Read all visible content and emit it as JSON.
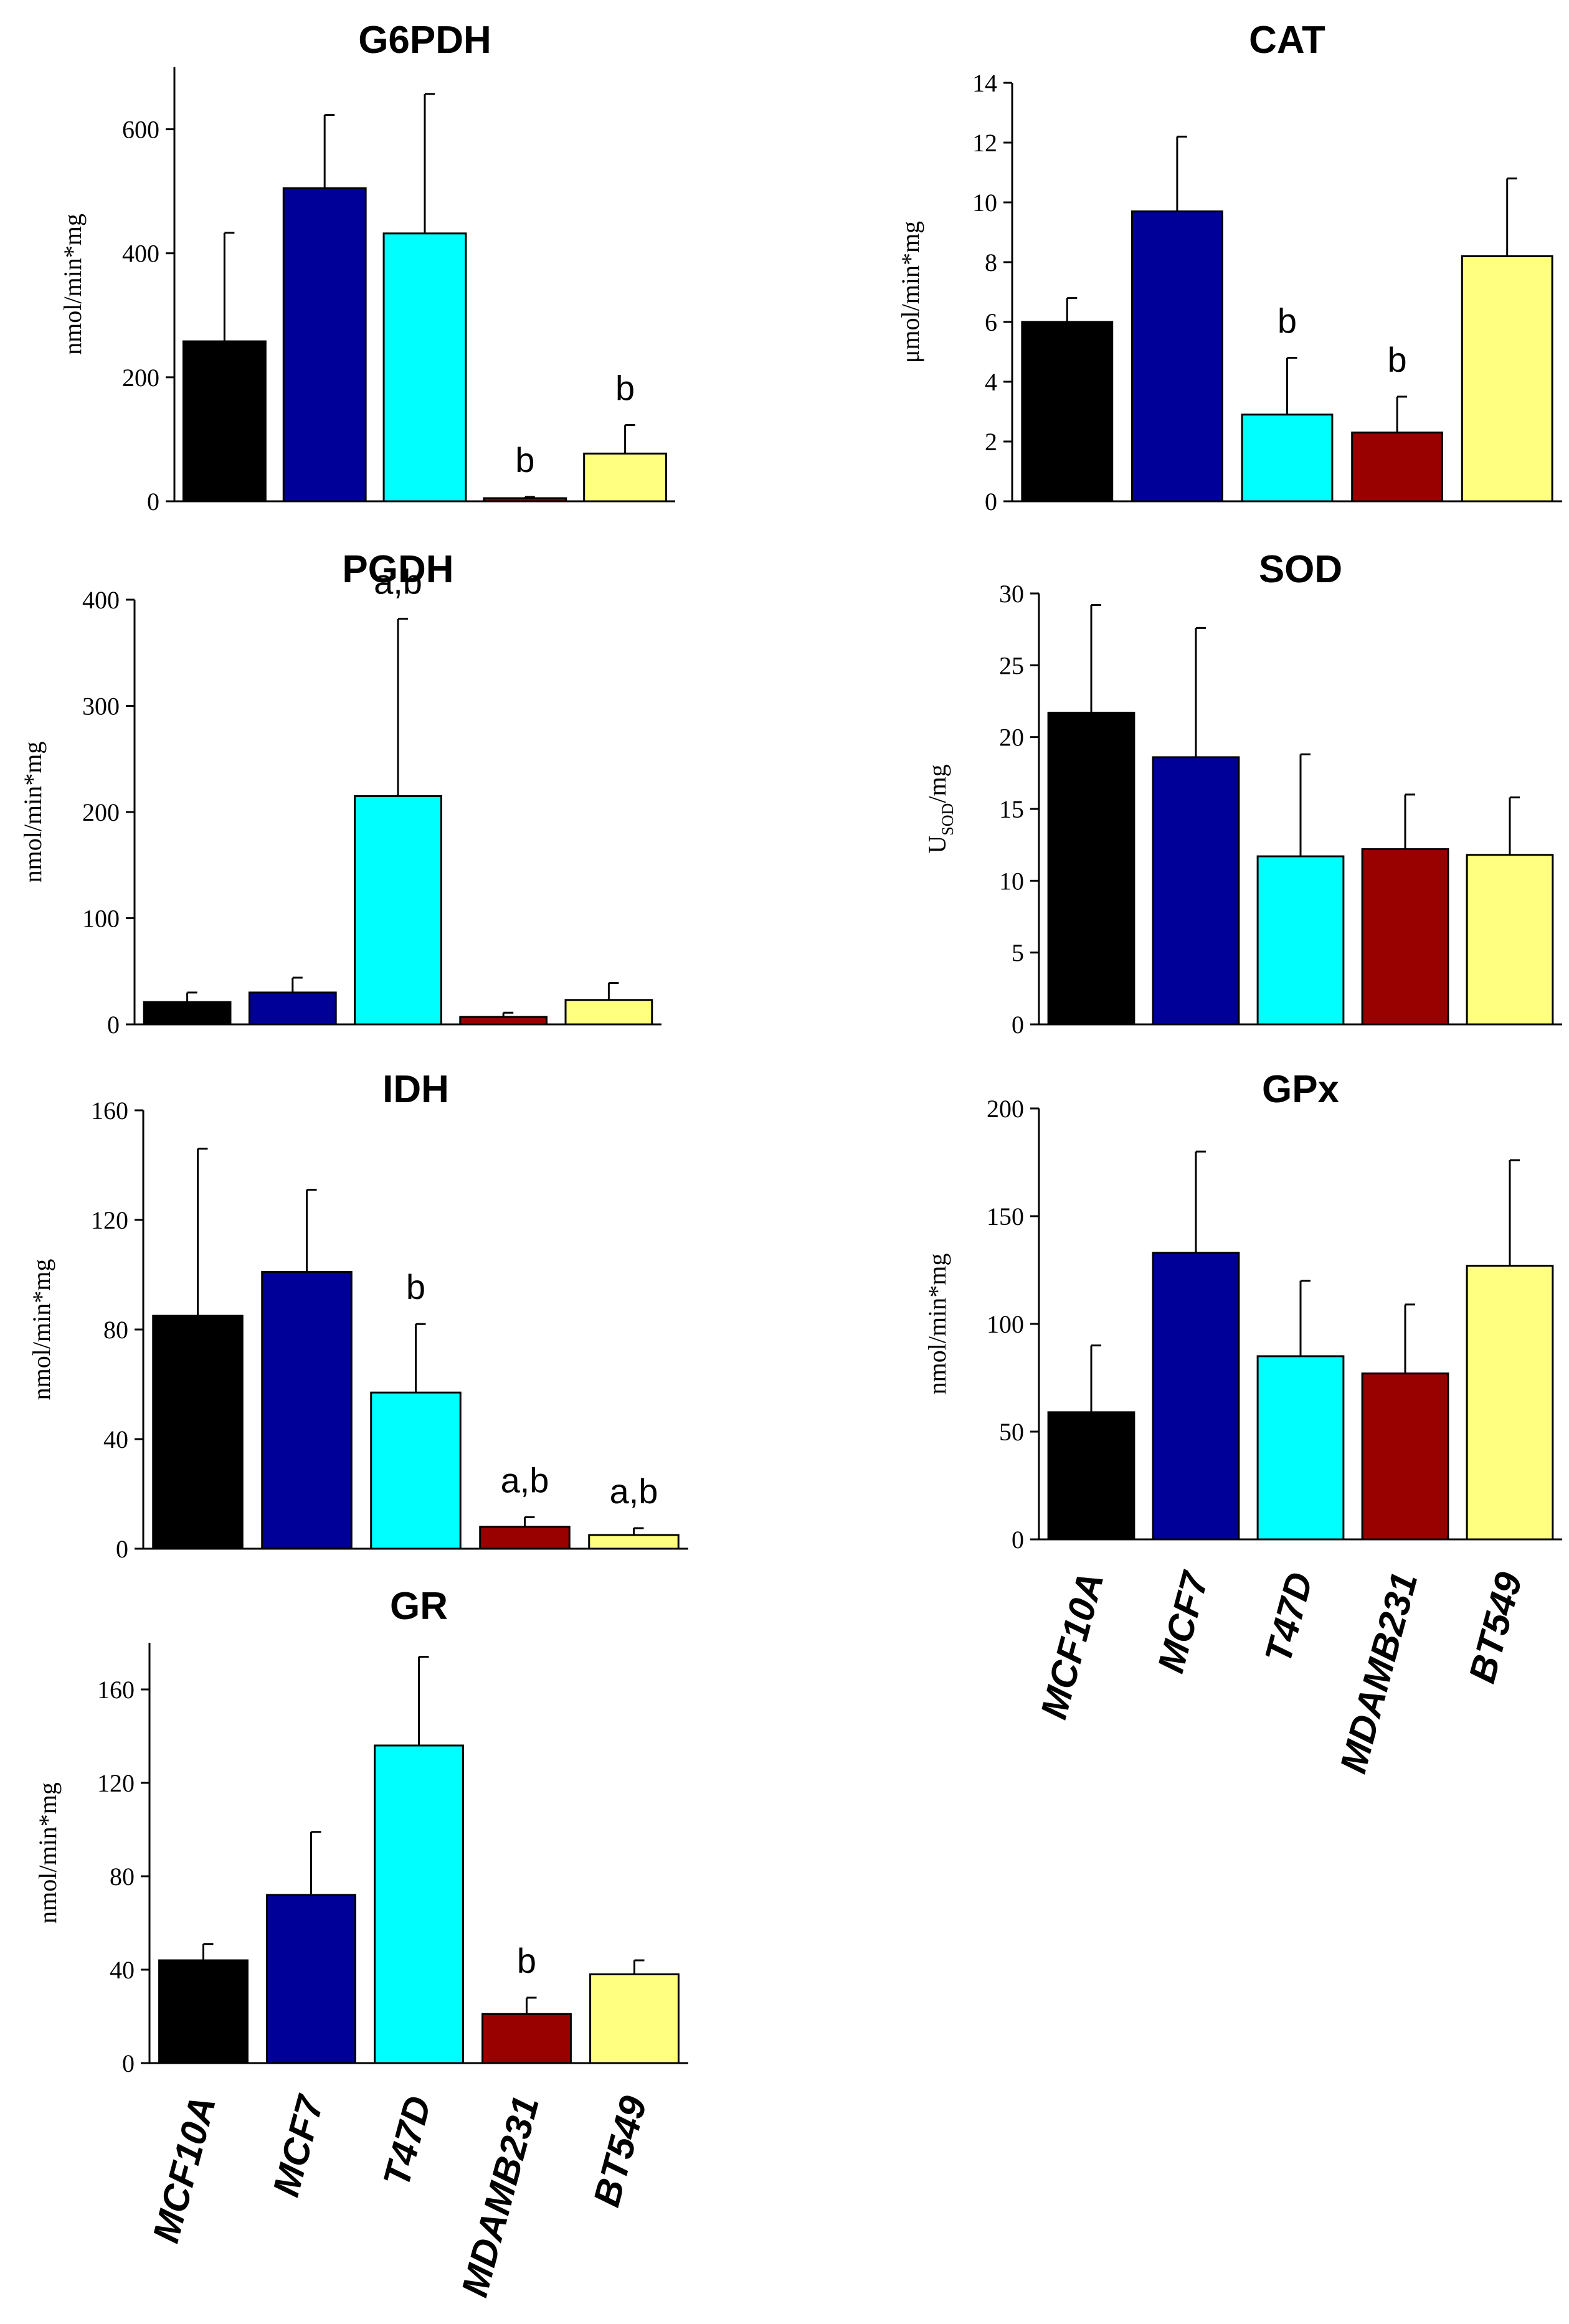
{
  "chart_data": [
    {
      "type": "bar",
      "title": "G6PDH",
      "ylabel": "nmol/min*mg",
      "ylim": [
        0,
        700
      ],
      "yticks": [
        0,
        200,
        400,
        600
      ],
      "categories": [
        "MCF10A",
        "MCF7",
        "T47D",
        "MDAMB231",
        "BT549"
      ],
      "values": [
        258,
        505,
        432,
        5,
        77
      ],
      "errors": [
        175,
        118,
        225,
        2,
        46
      ],
      "colors": [
        "#000000",
        "#000099",
        "#00ffff",
        "#990000",
        "#ffff80"
      ],
      "annotations": [
        "",
        "",
        "",
        "b",
        "b"
      ],
      "show_category_labels": false
    },
    {
      "type": "bar",
      "title": "CAT",
      "ylabel": "μmol/min*mg",
      "ylim": [
        0,
        14
      ],
      "yticks": [
        0,
        2,
        4,
        6,
        8,
        10,
        12,
        14
      ],
      "categories": [
        "MCF10A",
        "MCF7",
        "T47D",
        "MDAMB231",
        "BT549"
      ],
      "values": [
        6.0,
        9.7,
        2.9,
        2.3,
        8.2
      ],
      "errors": [
        0.8,
        2.5,
        1.9,
        1.2,
        2.6
      ],
      "colors": [
        "#000000",
        "#000099",
        "#00ffff",
        "#990000",
        "#ffff80"
      ],
      "annotations": [
        "",
        "",
        "b",
        "b",
        ""
      ],
      "show_category_labels": false
    },
    {
      "type": "bar",
      "title": "PGDH",
      "ylabel": "nmol/min*mg",
      "ylim": [
        0,
        400
      ],
      "yticks": [
        0,
        100,
        200,
        300,
        400
      ],
      "categories": [
        "MCF10A",
        "MCF7",
        "T47D",
        "MDAMB231",
        "BT549"
      ],
      "values": [
        21,
        30,
        215,
        7,
        23
      ],
      "errors": [
        9,
        14,
        167,
        4,
        16
      ],
      "colors": [
        "#000000",
        "#000099",
        "#00ffff",
        "#990000",
        "#ffff80"
      ],
      "annotations": [
        "",
        "",
        "a,b",
        "",
        ""
      ],
      "show_category_labels": false
    },
    {
      "type": "bar",
      "title": "SOD",
      "ylabel": "U",
      "ylabel_sub": "SOD",
      "ylabel_tail": "/mg",
      "ylim": [
        0,
        30
      ],
      "yticks": [
        0,
        5,
        10,
        15,
        20,
        25,
        30
      ],
      "categories": [
        "MCF10A",
        "MCF7",
        "T47D",
        "MDAMB231",
        "BT549"
      ],
      "values": [
        21.7,
        18.6,
        11.7,
        12.2,
        11.8
      ],
      "errors": [
        7.5,
        9.0,
        7.1,
        3.8,
        4.0
      ],
      "colors": [
        "#000000",
        "#000099",
        "#00ffff",
        "#990000",
        "#ffff80"
      ],
      "annotations": [
        "",
        "",
        "",
        "",
        ""
      ],
      "show_category_labels": false
    },
    {
      "type": "bar",
      "title": "IDH",
      "ylabel": "nmol/min*mg",
      "ylim": [
        0,
        160
      ],
      "yticks": [
        0,
        40,
        80,
        120,
        160
      ],
      "categories": [
        "MCF10A",
        "MCF7",
        "T47D",
        "MDAMB231",
        "BT549"
      ],
      "values": [
        85,
        101,
        57,
        8,
        5
      ],
      "errors": [
        61,
        30,
        25,
        3.5,
        2.5
      ],
      "colors": [
        "#000000",
        "#000099",
        "#00ffff",
        "#990000",
        "#ffff80"
      ],
      "annotations": [
        "",
        "",
        "b",
        "a,b",
        "a,b"
      ],
      "show_category_labels": false
    },
    {
      "type": "bar",
      "title": "GPx",
      "ylabel": "nmol/min*mg",
      "ylim": [
        0,
        200
      ],
      "yticks": [
        0,
        50,
        100,
        150,
        200
      ],
      "categories": [
        "MCF10A",
        "MCF7",
        "T47D",
        "MDAMB231",
        "BT549"
      ],
      "values": [
        59,
        133,
        85,
        77,
        127
      ],
      "errors": [
        31,
        47,
        35,
        32,
        49
      ],
      "colors": [
        "#000000",
        "#000099",
        "#00ffff",
        "#990000",
        "#ffff80"
      ],
      "annotations": [
        "",
        "",
        "",
        "",
        ""
      ],
      "show_category_labels": true
    },
    {
      "type": "bar",
      "title": "GR",
      "ylabel": "nmol/min*mg",
      "ylim": [
        0,
        180
      ],
      "yticks": [
        0,
        40,
        80,
        120,
        160
      ],
      "categories": [
        "MCF10A",
        "MCF7",
        "T47D",
        "MDAMB231",
        "BT549"
      ],
      "values": [
        44,
        72,
        136,
        21,
        38
      ],
      "errors": [
        7,
        27,
        38,
        7,
        6
      ],
      "colors": [
        "#000000",
        "#000099",
        "#00ffff",
        "#990000",
        "#ffff80"
      ],
      "annotations": [
        "",
        "",
        "",
        "b",
        ""
      ],
      "show_category_labels": true
    }
  ]
}
